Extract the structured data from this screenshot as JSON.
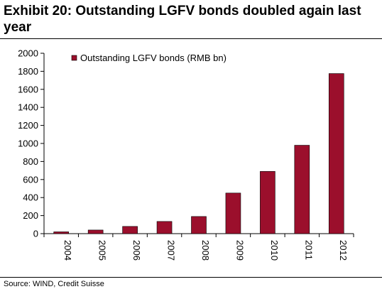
{
  "title": "Exhibit 20: Outstanding LGFV bonds doubled again last year",
  "source": "Source: WIND, Credit Suisse",
  "colors": {
    "bar": "#9b0f2c",
    "bar_edge": "#000000",
    "axis": "#000000"
  },
  "chart_data": {
    "type": "bar",
    "categories": [
      "2004",
      "2005",
      "2006",
      "2007",
      "2008",
      "2009",
      "2010",
      "2011",
      "2012"
    ],
    "series": [
      {
        "name": "Outstanding LGFV bonds (RMB bn)",
        "values": [
          20,
          40,
          80,
          135,
          190,
          450,
          690,
          980,
          1775
        ]
      }
    ],
    "yticks": [
      0,
      200,
      400,
      600,
      800,
      1000,
      1200,
      1400,
      1600,
      1800,
      2000
    ],
    "ylim": [
      0,
      2000
    ],
    "xlabel": "",
    "ylabel": "",
    "grid": false,
    "legend": "top-left"
  }
}
